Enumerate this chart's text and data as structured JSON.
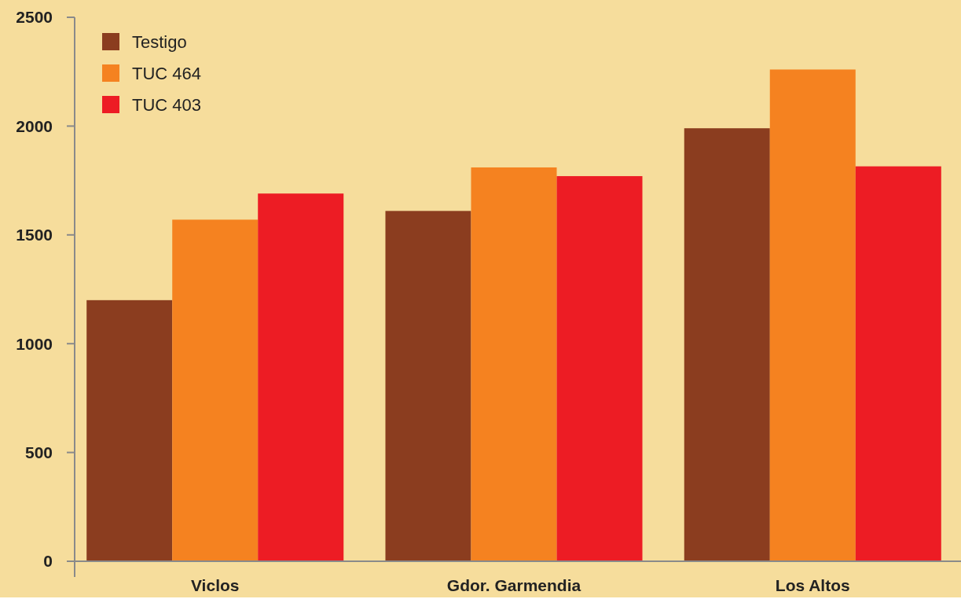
{
  "chart_data": {
    "type": "bar",
    "categories": [
      "Viclos",
      "Gdor. Garmendia",
      "Los Altos"
    ],
    "series": [
      {
        "name": "Testigo",
        "color": "#8b3d1f",
        "values": [
          1200,
          1610,
          1990
        ]
      },
      {
        "name": "TUC 464",
        "color": "#f58220",
        "values": [
          1570,
          1810,
          2260
        ]
      },
      {
        "name": "TUC 403",
        "color": "#ed1c24",
        "values": [
          1690,
          1770,
          1815
        ]
      }
    ],
    "ylim": [
      0,
      2500
    ],
    "yticks": [
      0,
      500,
      1000,
      1500,
      2000,
      2500
    ],
    "grid": false,
    "legend": "top left"
  }
}
